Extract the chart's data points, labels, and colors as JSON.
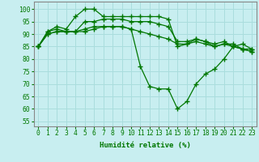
{
  "xlabel": "Humidité relative (%)",
  "bg_color": "#c8eef0",
  "grid_color": "#aadddd",
  "line_color": "#007700",
  "xlim": [
    -0.5,
    23.5
  ],
  "ylim": [
    53,
    103
  ],
  "yticks": [
    55,
    60,
    65,
    70,
    75,
    80,
    85,
    90,
    95,
    100
  ],
  "xticks": [
    0,
    1,
    2,
    3,
    4,
    5,
    6,
    7,
    8,
    9,
    10,
    11,
    12,
    13,
    14,
    15,
    16,
    17,
    18,
    19,
    20,
    21,
    22,
    23
  ],
  "series": [
    [
      85,
      91,
      93,
      92,
      97,
      100,
      100,
      97,
      97,
      97,
      97,
      97,
      97,
      97,
      96,
      85,
      86,
      88,
      87,
      85,
      86,
      86,
      84,
      84
    ],
    [
      85,
      91,
      92,
      91,
      91,
      95,
      95,
      96,
      96,
      96,
      95,
      95,
      95,
      94,
      93,
      87,
      87,
      88,
      87,
      86,
      87,
      85,
      84,
      83
    ],
    [
      85,
      90,
      91,
      91,
      91,
      91,
      92,
      93,
      93,
      93,
      92,
      91,
      90,
      89,
      88,
      86,
      86,
      87,
      86,
      85,
      86,
      85,
      84,
      83
    ],
    [
      85,
      90,
      91,
      91,
      91,
      92,
      93,
      93,
      93,
      93,
      92,
      77,
      69,
      68,
      68,
      60,
      63,
      70,
      74,
      76,
      80,
      85,
      86,
      84
    ]
  ],
  "label_fontsize": 6.5,
  "tick_fontsize": 5.8
}
